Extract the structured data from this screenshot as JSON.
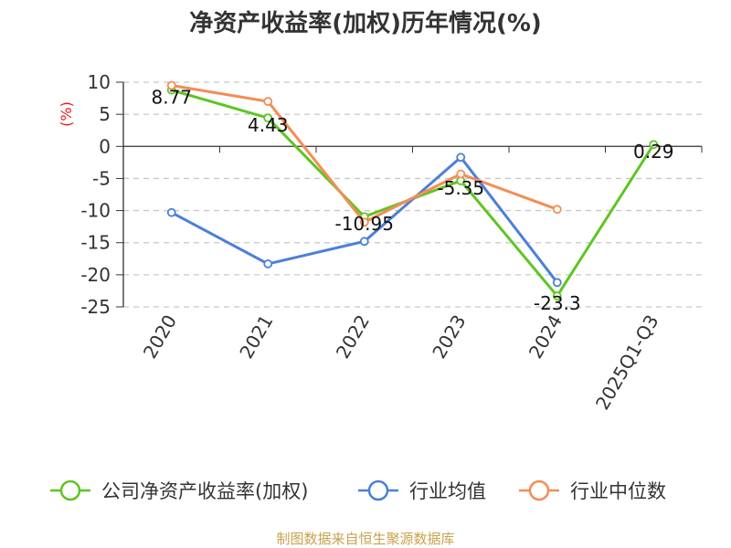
{
  "chart_data": {
    "type": "line",
    "title": "净资产收益率(加权)历年情况(%)",
    "ylabel": "(%)",
    "categories": [
      "2020",
      "2021",
      "2022",
      "2023",
      "2024",
      "2025Q1-Q3"
    ],
    "yticks": [
      10,
      5,
      0,
      -5,
      -10,
      -15,
      -20,
      -25
    ],
    "ylim": [
      -25,
      10
    ],
    "grid": true,
    "legend_position": "bottom",
    "series": [
      {
        "name": "公司净资产收益率(加权)",
        "color": "#5ec521",
        "values": [
          8.77,
          4.43,
          -10.95,
          -5.35,
          -23.3,
          0.29
        ],
        "labels": [
          "8.77",
          "4.43",
          "-10.95",
          "-5.35",
          "-23.3",
          "0.29"
        ]
      },
      {
        "name": "行业均值",
        "color": "#4c7fd9",
        "values": [
          -10.3,
          -18.3,
          -14.8,
          -1.7,
          -21.2,
          null
        ]
      },
      {
        "name": "行业中位数",
        "color": "#f58c55",
        "values": [
          9.5,
          7.0,
          -11.8,
          -4.3,
          -9.8,
          null
        ]
      }
    ]
  },
  "footer": {
    "source": "制图数据来自恒生聚源数据库"
  }
}
